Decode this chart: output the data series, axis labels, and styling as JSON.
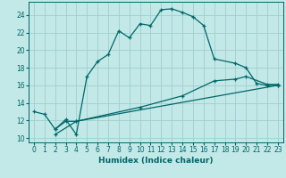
{
  "xlabel": "Humidex (Indice chaleur)",
  "bg_color": "#c2e8e8",
  "grid_color": "#a0cece",
  "line_color": "#006868",
  "xlim": [
    -0.5,
    23.5
  ],
  "ylim": [
    9.5,
    25.5
  ],
  "xticks": [
    0,
    1,
    2,
    3,
    4,
    5,
    6,
    7,
    8,
    9,
    10,
    11,
    12,
    13,
    14,
    15,
    16,
    17,
    18,
    19,
    20,
    21,
    22,
    23
  ],
  "yticks": [
    10,
    12,
    14,
    16,
    18,
    20,
    22,
    24
  ],
  "line1_x": [
    0,
    1,
    2,
    3,
    4,
    5,
    6,
    7,
    8,
    9,
    10,
    11,
    12,
    13,
    14,
    15,
    16,
    17,
    19,
    20,
    21,
    22,
    23
  ],
  "line1_y": [
    13.0,
    12.7,
    11.0,
    12.1,
    10.4,
    17.0,
    18.7,
    19.5,
    22.2,
    21.4,
    23.0,
    22.8,
    24.6,
    24.7,
    24.3,
    23.8,
    22.8,
    19.0,
    18.5,
    18.0,
    16.2,
    16.0,
    16.0
  ],
  "line2_x": [
    2,
    3,
    4,
    10,
    14,
    17,
    19,
    20,
    22,
    23
  ],
  "line2_y": [
    11.0,
    11.9,
    11.9,
    13.5,
    14.8,
    16.5,
    16.7,
    17.0,
    16.1,
    16.1
  ],
  "line3_x": [
    2,
    4,
    23
  ],
  "line3_y": [
    10.4,
    11.9,
    16.0
  ]
}
